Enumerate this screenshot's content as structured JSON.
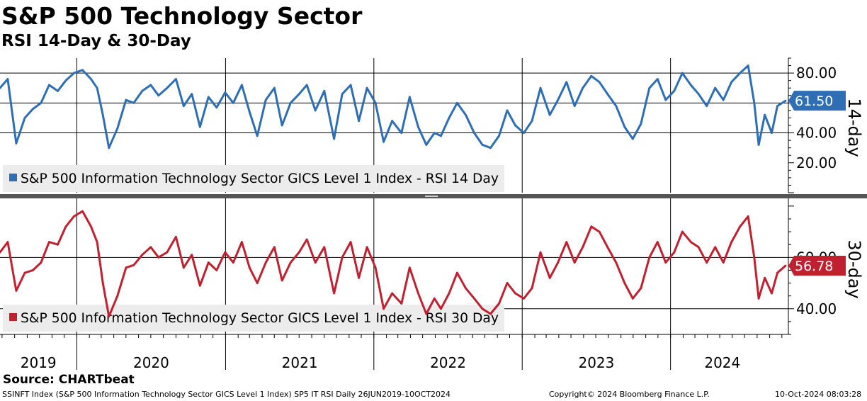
{
  "title": "S&P 500 Technology Sector",
  "subtitle": "RSI 14-Day & 30-Day",
  "source": "Source: CHARTbeat",
  "footer": {
    "left": "SSINFT Index (S&P 500 Information Technology Sector GICS Level 1 Index) SP5 IT RSI  Daily 26JUN2019-10OCT2024",
    "middle": "Copyright© 2024 Bloomberg Finance L.P.",
    "right": "10-Oct-2024 08:03:28"
  },
  "colors": {
    "rsi14": "#2e6eb4",
    "rsi30": "#c0202f",
    "grid": "#000000",
    "legend_bg": "#ececec"
  },
  "chart_data": [
    {
      "type": "line",
      "panel": "top",
      "axis_title": "14-day",
      "ylim": [
        0,
        90
      ],
      "y_ticks": [
        "20.00",
        "40.00",
        "80.00"
      ],
      "y_tick_values": [
        20,
        40,
        80
      ],
      "gridlines": [
        40,
        60,
        80
      ],
      "x_range": [
        "2019-06-26",
        "2024-10-10"
      ],
      "x_ticks": [
        "2019",
        "2020",
        "2021",
        "2022",
        "2023",
        "2024"
      ],
      "last_value_label": "61.50",
      "series": [
        {
          "name": "S&P 500 Information Technology Sector GICS Level 1 Index - RSI 14 Day",
          "x": [
            "2019-06-26",
            "2019-07-15",
            "2019-08-05",
            "2019-08-26",
            "2019-09-15",
            "2019-10-05",
            "2019-10-25",
            "2019-11-15",
            "2019-12-05",
            "2019-12-25",
            "2020-01-15",
            "2020-02-05",
            "2020-02-20",
            "2020-03-05",
            "2020-03-20",
            "2020-04-10",
            "2020-05-01",
            "2020-05-20",
            "2020-06-10",
            "2020-07-01",
            "2020-07-20",
            "2020-08-10",
            "2020-09-01",
            "2020-09-20",
            "2020-10-10",
            "2020-10-30",
            "2020-11-20",
            "2020-12-10",
            "2020-12-31",
            "2021-01-20",
            "2021-02-10",
            "2021-03-01",
            "2021-03-20",
            "2021-04-10",
            "2021-05-01",
            "2021-05-20",
            "2021-06-10",
            "2021-07-01",
            "2021-07-20",
            "2021-08-10",
            "2021-09-01",
            "2021-09-25",
            "2021-10-15",
            "2021-11-05",
            "2021-11-25",
            "2021-12-15",
            "2022-01-05",
            "2022-01-25",
            "2022-02-15",
            "2022-03-10",
            "2022-03-30",
            "2022-04-20",
            "2022-05-10",
            "2022-05-30",
            "2022-06-15",
            "2022-07-05",
            "2022-07-25",
            "2022-08-15",
            "2022-09-05",
            "2022-09-25",
            "2022-10-15",
            "2022-11-05",
            "2022-11-25",
            "2022-12-15",
            "2023-01-05",
            "2023-01-25",
            "2023-02-15",
            "2023-03-10",
            "2023-03-30",
            "2023-04-20",
            "2023-05-10",
            "2023-05-30",
            "2023-06-20",
            "2023-07-10",
            "2023-07-30",
            "2023-08-20",
            "2023-09-10",
            "2023-09-30",
            "2023-10-20",
            "2023-11-10",
            "2023-11-30",
            "2023-12-20",
            "2024-01-10",
            "2024-01-30",
            "2024-02-20",
            "2024-03-10",
            "2024-03-30",
            "2024-04-20",
            "2024-05-10",
            "2024-05-30",
            "2024-06-20",
            "2024-07-10",
            "2024-07-25",
            "2024-08-05",
            "2024-08-20",
            "2024-09-06",
            "2024-09-20",
            "2024-10-10"
          ],
          "values": [
            70,
            76,
            33,
            50,
            56,
            60,
            72,
            68,
            75,
            80,
            82,
            76,
            70,
            52,
            30,
            43,
            62,
            60,
            68,
            72,
            65,
            70,
            76,
            58,
            66,
            44,
            64,
            57,
            67,
            60,
            72,
            54,
            38,
            62,
            70,
            45,
            60,
            66,
            72,
            55,
            68,
            36,
            66,
            72,
            48,
            70,
            60,
            34,
            48,
            40,
            64,
            44,
            32,
            40,
            38,
            50,
            60,
            52,
            40,
            32,
            30,
            38,
            55,
            45,
            40,
            48,
            70,
            52,
            62,
            74,
            58,
            70,
            78,
            74,
            66,
            58,
            44,
            36,
            46,
            70,
            76,
            62,
            68,
            80,
            72,
            66,
            58,
            70,
            62,
            74,
            80,
            85,
            60,
            32,
            52,
            40,
            58,
            61.5
          ]
        }
      ]
    },
    {
      "type": "line",
      "panel": "bottom",
      "axis_title": "30-day",
      "ylim": [
        30,
        83
      ],
      "y_ticks": [
        "40.00",
        "60.00"
      ],
      "y_tick_values": [
        40,
        60
      ],
      "gridlines": [
        40,
        60
      ],
      "x_range": [
        "2019-06-26",
        "2024-10-10"
      ],
      "x_ticks": [
        "2019",
        "2020",
        "2021",
        "2022",
        "2023",
        "2024"
      ],
      "last_value_label": "56.78",
      "series": [
        {
          "name": "S&P 500 Information Technology Sector GICS Level 1 Index - RSI 30 Day",
          "x": [
            "2019-06-26",
            "2019-07-15",
            "2019-08-05",
            "2019-08-26",
            "2019-09-15",
            "2019-10-05",
            "2019-10-25",
            "2019-11-15",
            "2019-12-05",
            "2019-12-25",
            "2020-01-15",
            "2020-02-05",
            "2020-02-20",
            "2020-03-05",
            "2020-03-20",
            "2020-04-10",
            "2020-05-01",
            "2020-05-20",
            "2020-06-10",
            "2020-07-01",
            "2020-07-20",
            "2020-08-10",
            "2020-09-01",
            "2020-09-20",
            "2020-10-10",
            "2020-10-30",
            "2020-11-20",
            "2020-12-10",
            "2020-12-31",
            "2021-01-20",
            "2021-02-10",
            "2021-03-01",
            "2021-03-20",
            "2021-04-10",
            "2021-05-01",
            "2021-05-20",
            "2021-06-10",
            "2021-07-01",
            "2021-07-20",
            "2021-08-10",
            "2021-09-01",
            "2021-09-25",
            "2021-10-15",
            "2021-11-05",
            "2021-11-25",
            "2021-12-15",
            "2022-01-05",
            "2022-01-25",
            "2022-02-15",
            "2022-03-10",
            "2022-03-30",
            "2022-04-20",
            "2022-05-10",
            "2022-05-30",
            "2022-06-15",
            "2022-07-05",
            "2022-07-25",
            "2022-08-15",
            "2022-09-05",
            "2022-09-25",
            "2022-10-15",
            "2022-11-05",
            "2022-11-25",
            "2022-12-15",
            "2023-01-05",
            "2023-01-25",
            "2023-02-15",
            "2023-03-10",
            "2023-03-30",
            "2023-04-20",
            "2023-05-10",
            "2023-05-30",
            "2023-06-20",
            "2023-07-10",
            "2023-07-30",
            "2023-08-20",
            "2023-09-10",
            "2023-09-30",
            "2023-10-20",
            "2023-11-10",
            "2023-11-30",
            "2023-12-20",
            "2024-01-10",
            "2024-01-30",
            "2024-02-20",
            "2024-03-10",
            "2024-03-30",
            "2024-04-20",
            "2024-05-10",
            "2024-05-30",
            "2024-06-20",
            "2024-07-10",
            "2024-07-25",
            "2024-08-05",
            "2024-08-20",
            "2024-09-06",
            "2024-09-20",
            "2024-10-10"
          ],
          "values": [
            62,
            66,
            47,
            54,
            55,
            58,
            66,
            65,
            72,
            76,
            78,
            72,
            66,
            50,
            37,
            45,
            56,
            57,
            61,
            64,
            60,
            62,
            68,
            56,
            61,
            49,
            58,
            55,
            62,
            58,
            66,
            56,
            50,
            58,
            64,
            51,
            58,
            62,
            67,
            58,
            64,
            46,
            60,
            66,
            52,
            64,
            56,
            40,
            46,
            42,
            56,
            46,
            38,
            44,
            40,
            46,
            54,
            48,
            44,
            40,
            38,
            42,
            50,
            46,
            44,
            48,
            62,
            52,
            58,
            66,
            58,
            64,
            72,
            70,
            64,
            58,
            50,
            44,
            48,
            60,
            66,
            58,
            62,
            70,
            66,
            64,
            58,
            64,
            58,
            66,
            72,
            76,
            60,
            44,
            52,
            46,
            54,
            56.78
          ]
        }
      ]
    }
  ]
}
